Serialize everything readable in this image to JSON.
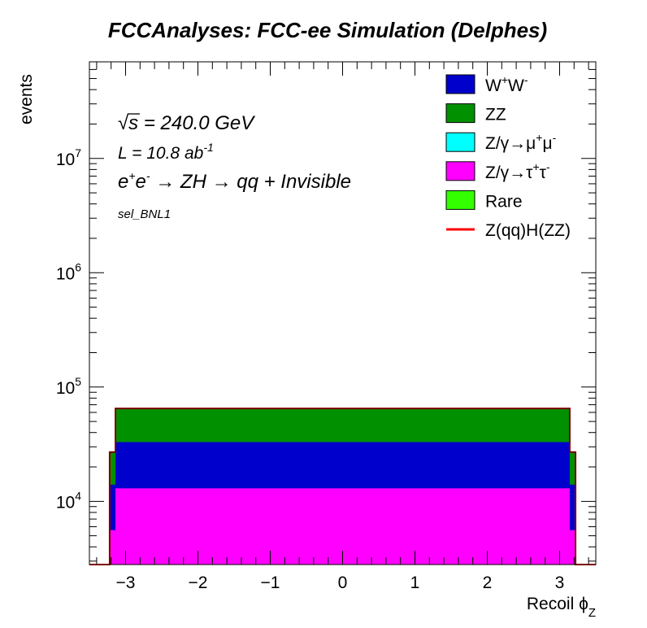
{
  "chart_data": {
    "type": "bar",
    "subtype": "stacked-histogram",
    "title": "FCCAnalyses: FCC-ee Simulation (Delphes)",
    "xlabel": "Recoil ϕ",
    "xlabel_subscript": "Z",
    "ylabel": "events",
    "xlim": [
      -3.5,
      3.5
    ],
    "ylim": [
      2800,
      70000000
    ],
    "yscale": "log",
    "grid": false,
    "legend_position": "top-right",
    "xticks": [
      -3,
      -2,
      -1,
      0,
      1,
      2,
      3
    ],
    "xtick_labels": [
      "−3",
      "−2",
      "−1",
      "0",
      "1",
      "2",
      "3"
    ],
    "yticks": [
      {
        "base": "10",
        "exp": "4",
        "value": 10000
      },
      {
        "base": "10",
        "exp": "5",
        "value": 100000
      },
      {
        "base": "10",
        "exp": "6",
        "value": 1000000
      },
      {
        "base": "10",
        "exp": "7",
        "value": 10000000
      }
    ],
    "annotations": {
      "sqrt_s_symbol": "√",
      "sqrt_s_var": "s",
      "sqrt_s_rest": " = 240.0 GeV",
      "lumi_main": "L = 10.8 ab",
      "lumi_exp": "-1",
      "process_e1": "e",
      "process_plus": "+",
      "process_e2": "e",
      "process_minus": "-",
      "process_rest": " → ZH → qq + Invisible",
      "selection": "sel_BNL1"
    },
    "bins": [
      {
        "x0": -3.5,
        "x1": -3.22
      },
      {
        "x0": -3.22,
        "x1": -3.14
      },
      {
        "x0": -3.14,
        "x1": 3.14
      },
      {
        "x0": 3.14,
        "x1": 3.22
      },
      {
        "x0": 3.22,
        "x1": 3.5
      }
    ],
    "series": [
      {
        "name": "Z/γ→τ⁺τ⁻",
        "color": "#ff00ff",
        "values": [
          2800,
          5600,
          13000,
          5600,
          2800
        ]
      },
      {
        "name": "W⁺W⁻",
        "color": "#0000cc",
        "values": [
          2800,
          14000,
          33000,
          14000,
          2800
        ]
      },
      {
        "name": "ZZ",
        "color": "#009000",
        "values": [
          2800,
          27000,
          65000,
          27000,
          2800
        ]
      }
    ],
    "signal": {
      "name": "Z(qq)H(ZZ)",
      "color": "#ff0000",
      "values": [
        2800,
        27000,
        65000,
        27000,
        2800
      ]
    },
    "legend": [
      {
        "label": "W",
        "sup1": "+",
        "mid": "W",
        "sup2": "-",
        "color": "#0000cc",
        "kind": "box"
      },
      {
        "label": "ZZ",
        "color": "#009000",
        "kind": "box"
      },
      {
        "label": "Z/γ→μ",
        "sup1": "+",
        "mid": "μ",
        "sup2": "-",
        "color": "#00ffff",
        "kind": "box"
      },
      {
        "label": "Z/γ→τ",
        "sup1": "+",
        "mid": "τ",
        "sup2": "-",
        "color": "#ff00ff",
        "kind": "box"
      },
      {
        "label": "Rare",
        "color": "#33ff00",
        "kind": "box"
      },
      {
        "label": "Z(qq)H(ZZ)",
        "color": "#ff0000",
        "kind": "line"
      }
    ]
  }
}
